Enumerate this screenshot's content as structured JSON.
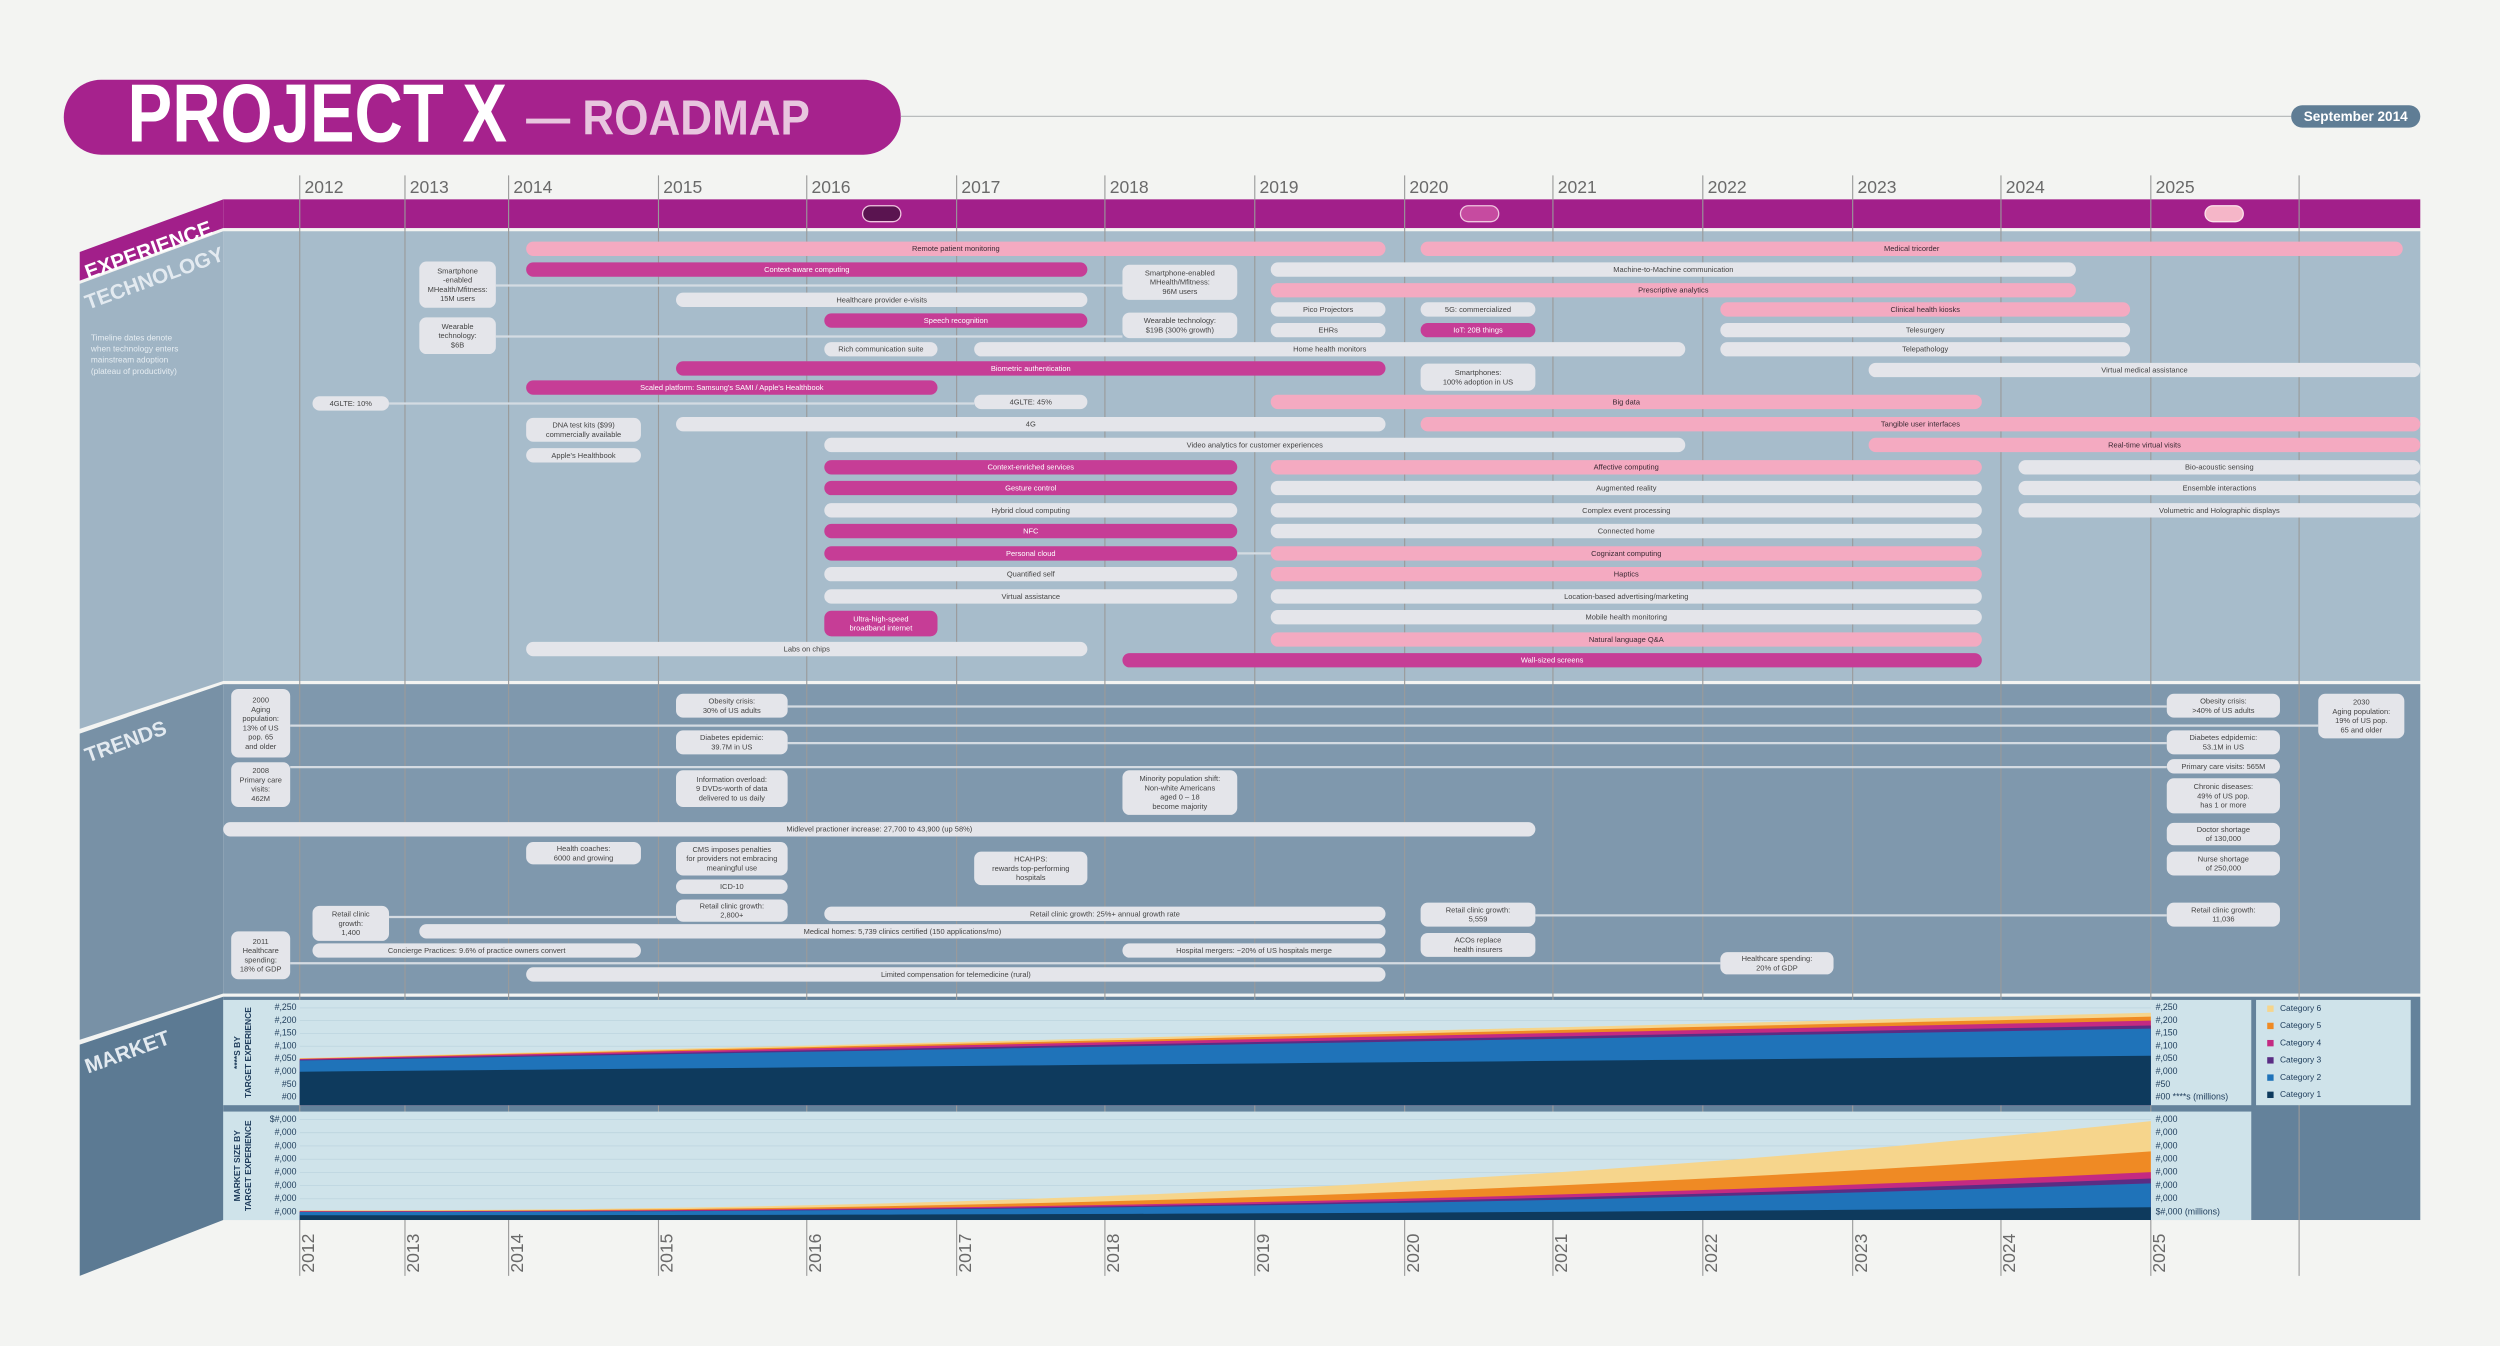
{
  "header": {
    "title": "PROJECT X",
    "subtitle": "— ROADMAP",
    "date": "September 2014"
  },
  "years": [
    "2012",
    "2013",
    "2014",
    "2015",
    "2016",
    "2017",
    "2018",
    "2019",
    "2020",
    "2021",
    "2022",
    "2023",
    "2024",
    "2025"
  ],
  "sections": {
    "experience": "EXPERIENCE",
    "technology": "TECHNOLOGY",
    "trends": "TRENDS",
    "market": "MARKET"
  },
  "technology": {
    "note": [
      "Timeline dates denote",
      "when technology enters",
      "mainstream adoption",
      "(plateau of productivity)"
    ],
    "items": [
      {
        "label": "Remote patient monitoring"
      },
      {
        "label": "Medical tricorder"
      },
      {
        "label": "Context-aware computing"
      },
      {
        "label": "Machine-to-Machine communication"
      },
      {
        "label": "Prescriptive analytics"
      },
      {
        "label": "Healthcare provider e-visits"
      },
      {
        "label": "Pico Projectors"
      },
      {
        "label": "5G: commercialized"
      },
      {
        "label": "Clinical health kiosks"
      },
      {
        "label": "Speech recognition"
      },
      {
        "label": "EHRs"
      },
      {
        "label": "IoT: 20B things"
      },
      {
        "label": "Telesurgery"
      },
      {
        "label": "Rich communication suite"
      },
      {
        "label": "Home health monitors"
      },
      {
        "label": "Telepathology"
      },
      {
        "label": "Biometric authentication"
      },
      {
        "label": "Virtual medical assistance"
      },
      {
        "label": "Scaled platform: Samsung's SAMI / Apple's Healthbook"
      },
      {
        "label": "Big data"
      },
      {
        "label": "4GLTE: 45%"
      },
      {
        "label": "4GLTE: 10%"
      },
      {
        "label": "4G"
      },
      {
        "label": "Tangible user interfaces"
      },
      {
        "label": "Video analytics for customer experiences"
      },
      {
        "label": "Real-time virtual visits"
      },
      {
        "label": "Context-enriched services"
      },
      {
        "label": "Affective computing"
      },
      {
        "label": "Bio-acoustic sensing"
      },
      {
        "label": "Gesture control"
      },
      {
        "label": "Augmented reality"
      },
      {
        "label": "Ensemble interactions"
      },
      {
        "label": "Hybrid cloud computing"
      },
      {
        "label": "Complex event processing"
      },
      {
        "label": "Volumetric and Holographic displays"
      },
      {
        "label": "NFC"
      },
      {
        "label": "Connected home"
      },
      {
        "label": "Personal cloud"
      },
      {
        "label": "Cognizant computing"
      },
      {
        "label": "Quantified self"
      },
      {
        "label": "Haptics"
      },
      {
        "label": "Virtual assistance"
      },
      {
        "label": "Location-based advertising/marketing"
      },
      {
        "label": "Mobile health monitoring"
      },
      {
        "label": "Natural language Q&A"
      },
      {
        "label": "Labs on chips"
      },
      {
        "label": "Wall-sized screens"
      },
      {
        "lines": [
          "Smartphone",
          "-enabled",
          "MHealth/Mfitness:",
          "15M users"
        ]
      },
      {
        "lines": [
          "Wearable",
          "technology:",
          "$6B"
        ]
      },
      {
        "lines": [
          "Smartphone-enabled",
          "MHealth/Mfitness:",
          "96M users"
        ]
      },
      {
        "lines": [
          "Wearable technology:",
          "$19B (300% growth)"
        ]
      },
      {
        "lines": [
          "Smartphones:",
          "100% adoption in US"
        ]
      },
      {
        "lines": [
          "DNA test kits ($99)",
          "commercially available"
        ]
      },
      {
        "label": "Apple's Healthbook"
      },
      {
        "lines": [
          "Ultra-high-speed",
          "broadband internet"
        ]
      }
    ]
  },
  "trends": {
    "items": [
      {
        "lines": [
          "2000",
          "Aging",
          "population:",
          "13% of US",
          "pop. 65",
          "and older"
        ]
      },
      {
        "lines": [
          "2030",
          "Aging population:",
          "19% of US pop.",
          "65 and older"
        ]
      },
      {
        "lines": [
          "Obesity crisis:",
          "30% of US adults"
        ]
      },
      {
        "lines": [
          "Obesity crisis:",
          ">40% of US adults"
        ]
      },
      {
        "lines": [
          "Diabetes epidemic:",
          "39.7M in US"
        ]
      },
      {
        "lines": [
          "Diabetes edpidemic:",
          "53.1M in US"
        ]
      },
      {
        "lines": [
          "2008",
          "Primary care",
          "visits:",
          "462M"
        ]
      },
      {
        "label": "Primary care visits: 565M"
      },
      {
        "lines": [
          "Information overload:",
          "9 DVDs-worth of data",
          "delivered to us daily"
        ]
      },
      {
        "lines": [
          "Minority population shift:",
          "Non-white Americans",
          "aged 0 – 18",
          "become majority"
        ]
      },
      {
        "lines": [
          "Chronic diseases:",
          "49% of US pop.",
          "has 1 or more"
        ]
      },
      {
        "label": "Midlevel practioner increase: 27,700 to 43,900 (up 58%)"
      },
      {
        "lines": [
          "Doctor shortage",
          "of 130,000"
        ]
      },
      {
        "lines": [
          "Health coaches:",
          "6000 and growing"
        ]
      },
      {
        "lines": [
          "CMS imposes penalties",
          "for providers not embracing",
          "meaningful use"
        ]
      },
      {
        "lines": [
          "HCAHPS:",
          "rewards top-performing",
          "hospitals"
        ]
      },
      {
        "lines": [
          "Nurse shortage",
          "of 250,000"
        ]
      },
      {
        "label": "ICD-10"
      },
      {
        "lines": [
          "Retail clinic",
          "growth:",
          "1,400"
        ]
      },
      {
        "lines": [
          "Retail clinic growth:",
          "2,800+"
        ]
      },
      {
        "label": "Retail clinic growth: 25%+ annual growth rate"
      },
      {
        "lines": [
          "Retail clinic growth:",
          "5,559"
        ]
      },
      {
        "lines": [
          "Retail clinic growth:",
          "11,036"
        ]
      },
      {
        "label": "Medical homes: 5,739 clinics certified (150 applications/mo)"
      },
      {
        "lines": [
          "ACOs replace",
          "health insurers"
        ]
      },
      {
        "lines": [
          "2011",
          "Healthcare",
          "spending:",
          "18% of GDP"
        ]
      },
      {
        "lines": [
          "Healthcare spending:",
          "20% of GDP"
        ]
      },
      {
        "label": "Concierge Practices: 9.6% of practice owners convert"
      },
      {
        "label": "Hospital mergers: ~20% of US hospitals merge"
      },
      {
        "label": "Limited compensation for telemedicine (rural)"
      }
    ]
  },
  "market": {
    "charts": [
      {
        "title": [
          "****S BY",
          "TARGET EXPERIENCE"
        ],
        "left_labels": [
          "#,250",
          "#,200",
          "#,150",
          "#,100",
          "#,050",
          "#,000",
          "#50",
          "#00"
        ],
        "right_labels": [
          "#,250",
          "#,200",
          "#,150",
          "#,100",
          "#,050",
          "#,000",
          "#50",
          "#00 ****s (millions)"
        ]
      },
      {
        "title": [
          "MARKET SIZE BY",
          "TARGET EXPERIENCE"
        ],
        "left_labels": [
          "$#,000",
          "#,000",
          "#,000",
          "#,000",
          "#,000",
          "#,000",
          "#,000",
          "#,000"
        ],
        "right_labels": [
          "#,000",
          "#,000",
          "#,000",
          "#,000",
          "#,000",
          "#,000",
          "#,000",
          "$#,000 (millions)"
        ]
      }
    ],
    "legend": [
      "Category 6",
      "Category 5",
      "Category 4",
      "Category 3",
      "Category 2",
      "Category 1"
    ]
  }
}
